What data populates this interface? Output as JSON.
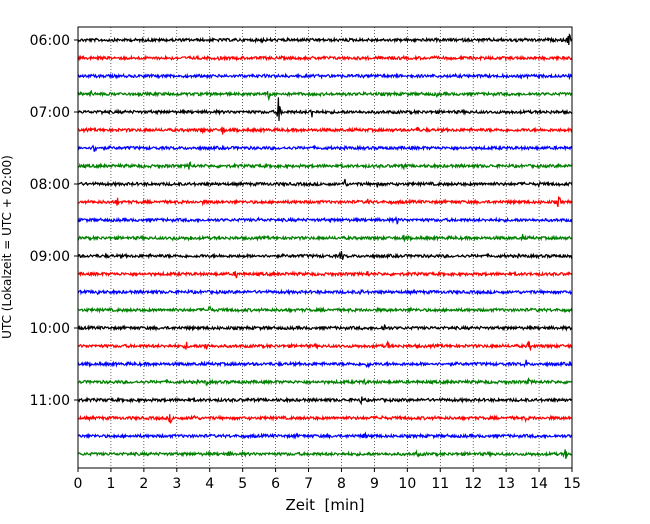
{
  "chart_data": {
    "type": "line",
    "title": "",
    "xlabel": "Zeit  [min]",
    "ylabel": "UTC (Lokalzeit = UTC + 02:00)",
    "xlim": [
      0,
      15
    ],
    "x_ticks": [
      "0",
      "1",
      "2",
      "3",
      "4",
      "5",
      "6",
      "7",
      "8",
      "9",
      "10",
      "11",
      "12",
      "13",
      "14",
      "15"
    ],
    "y_ticks": [
      "06:00",
      "07:00",
      "08:00",
      "09:00",
      "10:00",
      "11:00"
    ],
    "grid": "vertical dotted",
    "colors": {
      "black": "#000000",
      "red": "#ff0000",
      "blue": "#0000ff",
      "green": "#008000"
    },
    "series": [
      {
        "start": "06:00",
        "color": "black",
        "events": [
          [
            5.6,
            3
          ],
          [
            9.4,
            2
          ],
          [
            13.3,
            3
          ],
          [
            13.7,
            3
          ],
          [
            14.9,
            9
          ]
        ]
      },
      {
        "start": "06:15",
        "color": "red",
        "events": [
          [
            4.3,
            3
          ]
        ]
      },
      {
        "start": "06:30",
        "color": "blue",
        "events": [
          [
            9.0,
            4
          ],
          [
            14.9,
            3
          ]
        ]
      },
      {
        "start": "06:45",
        "color": "green",
        "events": [
          [
            0.4,
            4
          ],
          [
            5.8,
            6
          ],
          [
            10.9,
            3
          ]
        ]
      },
      {
        "start": "07:00",
        "color": "black",
        "events": [
          [
            0.7,
            3
          ],
          [
            6.1,
            18
          ],
          [
            7.1,
            7
          ]
        ]
      },
      {
        "start": "07:15",
        "color": "red",
        "events": [
          [
            3.8,
            5
          ],
          [
            4.4,
            6
          ],
          [
            10.3,
            4
          ]
        ]
      },
      {
        "start": "07:30",
        "color": "blue",
        "events": [
          [
            0.5,
            6
          ]
        ]
      },
      {
        "start": "07:45",
        "color": "green",
        "events": [
          [
            3.4,
            6
          ],
          [
            9.9,
            4
          ],
          [
            14.6,
            3
          ]
        ]
      },
      {
        "start": "08:00",
        "color": "black",
        "events": [
          [
            8.1,
            7
          ],
          [
            9.1,
            4
          ],
          [
            14.0,
            3
          ]
        ]
      },
      {
        "start": "08:15",
        "color": "red",
        "events": [
          [
            1.2,
            5
          ],
          [
            3.8,
            3
          ],
          [
            8.8,
            4
          ],
          [
            14.6,
            7
          ]
        ]
      },
      {
        "start": "08:30",
        "color": "blue",
        "events": [
          [
            5.5,
            3
          ],
          [
            9.7,
            5
          ]
        ]
      },
      {
        "start": "08:45",
        "color": "green",
        "events": [
          [
            2.9,
            4
          ],
          [
            3.4,
            4
          ],
          [
            9.9,
            4
          ],
          [
            13.5,
            4
          ]
        ]
      },
      {
        "start": "09:00",
        "color": "black",
        "events": [
          [
            8.0,
            7
          ]
        ]
      },
      {
        "start": "09:15",
        "color": "red",
        "events": [
          [
            4.8,
            5
          ],
          [
            8.8,
            4
          ]
        ]
      },
      {
        "start": "09:30",
        "color": "blue",
        "events": [
          [
            0.6,
            4
          ],
          [
            8.6,
            4
          ]
        ]
      },
      {
        "start": "09:45",
        "color": "green",
        "events": [
          [
            4.0,
            5
          ],
          [
            10.1,
            3
          ],
          [
            14.0,
            4
          ]
        ]
      },
      {
        "start": "10:00",
        "color": "black",
        "events": [
          [
            9.3,
            5
          ]
        ]
      },
      {
        "start": "10:15",
        "color": "red",
        "events": [
          [
            3.3,
            5
          ],
          [
            3.9,
            6
          ],
          [
            9.4,
            5
          ],
          [
            13.7,
            6
          ]
        ]
      },
      {
        "start": "10:30",
        "color": "blue",
        "events": [
          [
            8.8,
            5
          ],
          [
            13.6,
            5
          ]
        ]
      },
      {
        "start": "10:45",
        "color": "green",
        "events": [
          [
            3.9,
            4
          ],
          [
            8.7,
            4
          ],
          [
            13.7,
            4
          ]
        ]
      },
      {
        "start": "11:00",
        "color": "black",
        "events": [
          [
            8.6,
            5
          ]
        ]
      },
      {
        "start": "11:15",
        "color": "red",
        "events": [
          [
            2.8,
            6
          ],
          [
            3.5,
            6
          ],
          [
            9.2,
            4
          ],
          [
            13.6,
            4
          ]
        ]
      },
      {
        "start": "11:30",
        "color": "blue",
        "events": [
          [
            6.6,
            3
          ],
          [
            8.7,
            5
          ]
        ]
      },
      {
        "start": "11:45",
        "color": "green",
        "events": [
          [
            4.6,
            4
          ],
          [
            10.3,
            4
          ],
          [
            14.8,
            6
          ]
        ]
      }
    ]
  }
}
